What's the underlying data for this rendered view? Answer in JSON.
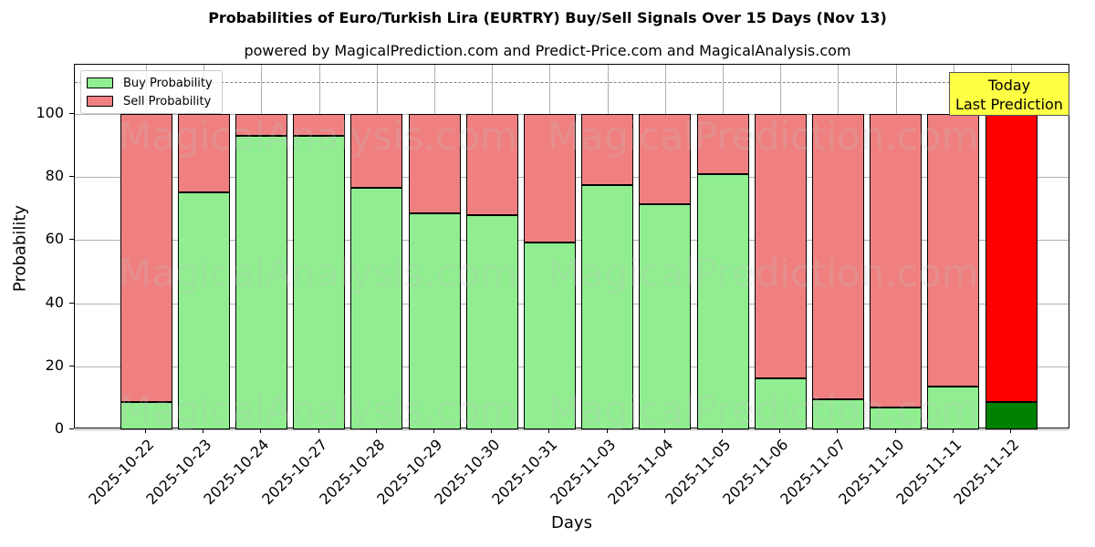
{
  "title": "Probabilities of Euro/Turkish Lira (EURTRY) Buy/Sell Signals Over 15 Days (Nov 13)",
  "subtitle": "powered by MagicalPrediction.com and Predict-Price.com and MagicalAnalysis.com",
  "annotation": {
    "line1": "Today",
    "line2": "Last Prediction"
  },
  "watermarks": [
    "MagicalAnalysis.com",
    "MagicalPrediction.com"
  ],
  "colors": {
    "buy": "#90ee90",
    "sell": "#f08080",
    "today_buy": "#008000",
    "today_sell": "#ff0000",
    "annotation_bg": "#ffff44"
  },
  "chart_data": {
    "type": "bar",
    "stacked": true,
    "title": "Probabilities of Euro/Turkish Lira (EURTRY) Buy/Sell Signals Over 15 Days (Nov 13)",
    "subtitle": "powered by MagicalPrediction.com and Predict-Price.com and MagicalAnalysis.com",
    "xlabel": "Days",
    "ylabel": "Probability",
    "ylim": [
      0,
      115
    ],
    "yticks": [
      0,
      20,
      40,
      60,
      80,
      100
    ],
    "reference_line": 110,
    "grid": true,
    "legend_position": "upper left",
    "categories": [
      "2025-10-22",
      "2025-10-23",
      "2025-10-24",
      "2025-10-27",
      "2025-10-28",
      "2025-10-29",
      "2025-10-30",
      "2025-10-31",
      "2025-11-03",
      "2025-11-04",
      "2025-11-05",
      "2025-11-06",
      "2025-11-07",
      "2025-11-10",
      "2025-11-11",
      "2025-11-12"
    ],
    "series": [
      {
        "name": "Buy Probability",
        "values": [
          8.7,
          75.1,
          93.1,
          93.1,
          76.6,
          68.5,
          67.9,
          59.2,
          77.5,
          71.4,
          80.9,
          16.2,
          9.5,
          6.9,
          13.6,
          8.7
        ]
      },
      {
        "name": "Sell Probability",
        "values": [
          91.3,
          24.9,
          6.9,
          6.9,
          23.4,
          31.5,
          32.1,
          40.8,
          22.5,
          28.6,
          19.1,
          83.8,
          90.5,
          93.1,
          86.4,
          91.3
        ]
      }
    ],
    "annotations": [
      "Today\nLast Prediction"
    ]
  }
}
